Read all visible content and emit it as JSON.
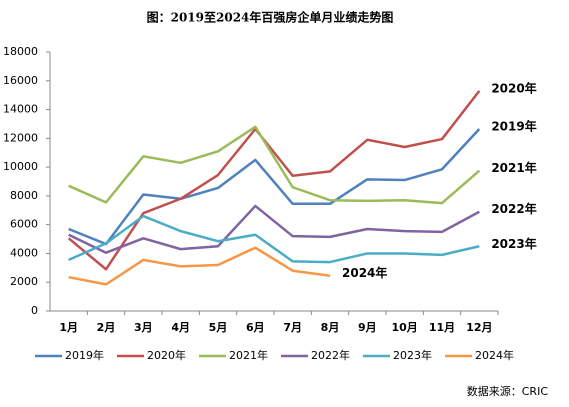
{
  "chart_data": {
    "type": "line",
    "title": "图：2019至2024年百强房企单月业绩走势图",
    "categories": [
      "1月",
      "2月",
      "3月",
      "4月",
      "5月",
      "6月",
      "7月",
      "8月",
      "9月",
      "10月",
      "11月",
      "12月"
    ],
    "series": [
      {
        "name": "2019年",
        "color": "#4f81bd",
        "values": [
          5700,
          4650,
          8100,
          7800,
          8550,
          10500,
          7450,
          7450,
          9150,
          9100,
          9850,
          12650
        ]
      },
      {
        "name": "2020年",
        "color": "#c0504d",
        "values": [
          5050,
          2900,
          6800,
          7800,
          9450,
          12650,
          9400,
          9700,
          11900,
          11400,
          11950,
          15300
        ]
      },
      {
        "name": "2021年",
        "color": "#9bbb59",
        "values": [
          8700,
          7550,
          10750,
          10300,
          11100,
          12800,
          8600,
          7700,
          7650,
          7700,
          7500,
          9750
        ]
      },
      {
        "name": "2022年",
        "color": "#8064a2",
        "values": [
          5300,
          4050,
          5050,
          4300,
          4500,
          7300,
          5200,
          5150,
          5700,
          5550,
          5500,
          6900
        ]
      },
      {
        "name": "2023年",
        "color": "#4bacc6",
        "values": [
          3550,
          4700,
          6600,
          5550,
          4850,
          5300,
          3450,
          3400,
          4000,
          4000,
          3900,
          4500
        ]
      },
      {
        "name": "2024年",
        "color": "#f79646",
        "values": [
          2350,
          1850,
          3550,
          3100,
          3200,
          4400,
          2800,
          2450,
          null,
          null,
          null,
          null
        ]
      }
    ],
    "ylim": [
      0,
      18000
    ],
    "yticks": [
      0,
      2000,
      4000,
      6000,
      8000,
      10000,
      12000,
      14000,
      16000,
      18000
    ],
    "grid": false,
    "legend": "bottom",
    "source": "数据来源：CRIC"
  }
}
